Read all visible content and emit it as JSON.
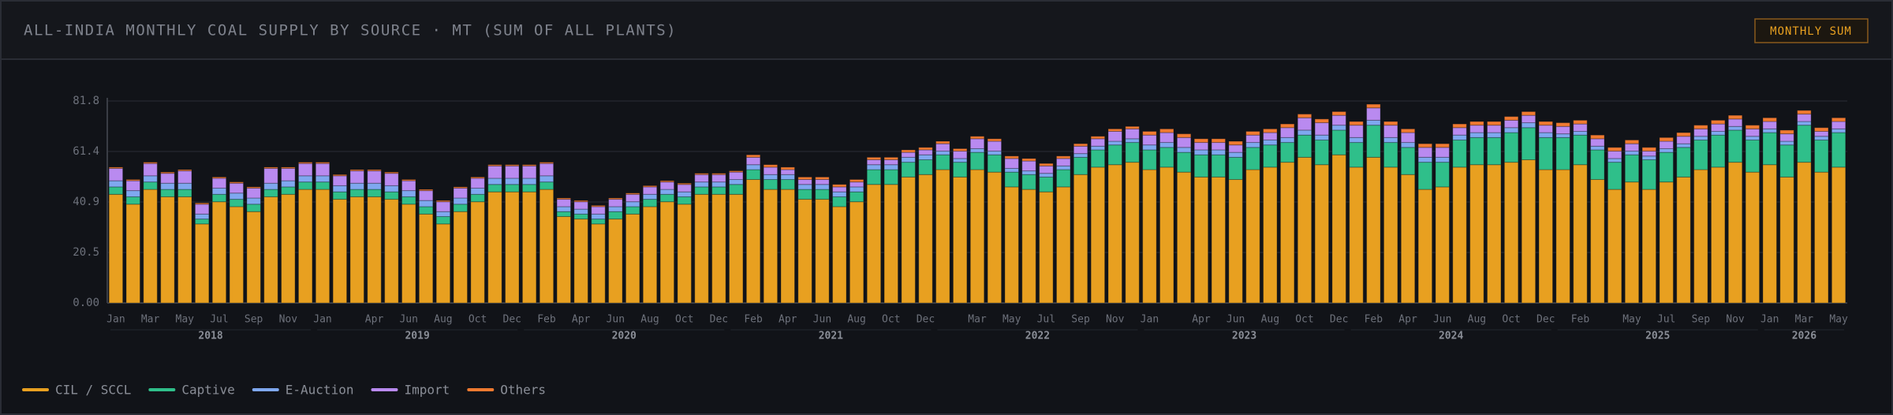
{
  "header": {
    "title": "ALL-INDIA MONTHLY COAL SUPPLY BY SOURCE · MT (SUM OF ALL PLANTS)",
    "button": "MONTHLY SUM"
  },
  "chart_data": {
    "type": "stacked_bar",
    "categories": [
      "Jan",
      null,
      "Mar",
      null,
      "May",
      null,
      "Jul",
      null,
      "Sep",
      null,
      "Nov",
      null,
      "Jan",
      null,
      null,
      "Apr",
      null,
      "Jun",
      null,
      "Aug",
      null,
      "Oct",
      null,
      "Dec",
      null,
      "Feb",
      null,
      "Apr",
      null,
      "Jun",
      null,
      "Aug",
      null,
      "Oct",
      null,
      "Dec",
      null,
      "Feb",
      null,
      "Apr",
      null,
      "Jun",
      null,
      "Aug",
      null,
      "Oct",
      null,
      "Dec",
      null,
      null,
      "Mar",
      null,
      "May",
      null,
      "Jul",
      null,
      "Sep",
      null,
      "Nov",
      null,
      "Jan",
      null,
      null,
      "Apr",
      null,
      "Jun",
      null,
      "Aug",
      null,
      "Oct",
      null,
      "Dec",
      null,
      "Feb",
      null,
      "Apr",
      null,
      "Jun",
      null,
      "Aug",
      null,
      "Oct",
      null,
      "Dec",
      null,
      "Feb",
      null,
      null,
      "May",
      null,
      "Jul",
      null,
      "Sep",
      null,
      "Nov",
      null,
      "Jan",
      null,
      "Mar",
      null,
      "May"
    ],
    "years": [
      "2018",
      "2019",
      "2020",
      "2021",
      "2022",
      "2023",
      "2024",
      "2025",
      "2026"
    ],
    "ylim": [
      0,
      81.8
    ],
    "yticks": [
      {
        "value": 0,
        "label": "0.00"
      },
      {
        "value": 20.45,
        "label": "20.5"
      },
      {
        "value": 40.9,
        "label": "40.9"
      },
      {
        "value": 61.35,
        "label": "61.4"
      },
      {
        "value": 81.8,
        "label": "81.8"
      }
    ],
    "grid": true,
    "series": [
      {
        "name": "CIL / SCCL",
        "color": "#e8a020",
        "values": [
          44,
          40,
          46,
          43,
          43,
          32,
          41,
          39,
          37,
          43,
          44,
          46,
          46,
          42,
          43,
          43,
          42,
          40,
          36,
          32,
          37,
          41,
          45,
          45,
          45,
          46,
          35,
          34,
          32,
          34,
          36,
          39,
          41,
          40,
          44,
          44,
          44,
          50,
          46,
          46,
          42,
          42,
          39,
          41,
          48,
          48,
          51,
          52,
          54,
          51,
          54,
          53,
          47,
          46,
          45,
          47,
          52,
          55,
          56,
          57,
          54,
          55,
          53,
          51,
          51,
          50,
          54,
          55,
          57,
          59,
          56,
          60,
          55,
          59,
          55,
          52,
          46,
          47,
          55,
          56,
          56,
          57,
          58,
          54,
          54,
          56,
          50,
          46,
          49,
          46,
          49,
          51,
          54,
          55,
          57,
          53,
          56,
          51,
          57,
          53,
          55
        ]
      },
      {
        "name": "Captive",
        "color": "#2fbf8a",
        "values": [
          3,
          3,
          3,
          3,
          3,
          2,
          3,
          3,
          3,
          3,
          3,
          3,
          3,
          3,
          3,
          3,
          3,
          3,
          3,
          3,
          3,
          3,
          3,
          3,
          3,
          3,
          2,
          2,
          2,
          3,
          3,
          3,
          3,
          3,
          3,
          3,
          4,
          4,
          4,
          4,
          4,
          4,
          4,
          4,
          6,
          6,
          6,
          6,
          6,
          6,
          7,
          7,
          6,
          6,
          6,
          7,
          7,
          7,
          8,
          8,
          8,
          8,
          8,
          9,
          9,
          9,
          9,
          9,
          8,
          9,
          10,
          10,
          10,
          13,
          10,
          11,
          11,
          10,
          11,
          11,
          11,
          12,
          13,
          13,
          13,
          12,
          12,
          11,
          11,
          12,
          12,
          12,
          12,
          13,
          13,
          13,
          13,
          13,
          15,
          13,
          14
        ]
      },
      {
        "name": "E-Auction",
        "color": "#7fa8f0",
        "values": [
          2.5,
          2.5,
          2.5,
          2.5,
          2.5,
          2,
          2.5,
          2.5,
          2.5,
          2.5,
          2.5,
          2.5,
          2.5,
          2.5,
          2.5,
          2.5,
          2.5,
          2.5,
          2.5,
          2,
          2.5,
          2.5,
          2.5,
          2.5,
          2.5,
          2.5,
          2,
          2,
          2,
          2,
          2,
          2,
          2,
          2,
          2,
          2,
          2,
          2,
          2,
          2,
          2,
          2,
          2,
          2,
          2,
          2,
          2,
          2,
          1.5,
          1.5,
          1.5,
          1.5,
          1.5,
          1.5,
          1.5,
          1.5,
          1.5,
          1.5,
          1.5,
          1.5,
          2,
          2,
          2,
          2,
          2,
          2,
          2,
          2,
          2,
          2,
          2,
          2,
          2,
          2,
          2,
          2,
          2,
          2,
          2,
          2,
          2,
          2,
          2,
          2,
          1.5,
          1.5,
          1.5,
          1.5,
          1.5,
          1.5,
          1.5,
          1.5,
          1.5,
          1.5,
          1.5,
          1.5,
          1.5,
          1.5,
          1.5,
          1.5,
          1.5
        ]
      },
      {
        "name": "Import",
        "color": "#b98af0",
        "values": [
          5,
          4,
          5,
          4,
          5,
          4,
          4,
          4,
          4,
          6,
          5,
          5,
          5,
          4,
          5,
          5,
          5,
          4,
          4,
          4,
          4,
          4,
          5,
          5,
          5,
          5,
          3,
          3,
          3,
          3,
          3,
          3,
          3,
          3,
          3,
          3,
          3,
          3,
          3,
          2,
          2,
          2,
          2,
          2,
          2,
          2,
          2,
          2,
          3,
          3,
          4,
          4,
          4,
          4,
          3,
          3,
          3,
          3,
          4,
          4,
          4,
          4,
          4,
          3,
          3,
          3,
          3,
          3,
          4,
          5,
          5,
          4,
          5,
          5,
          5,
          4,
          4,
          4,
          3,
          3,
          3,
          3,
          3,
          3,
          3,
          3,
          3,
          3,
          3,
          2,
          3,
          3,
          3,
          3,
          3,
          3,
          3,
          3,
          3,
          2,
          3
        ]
      },
      {
        "name": "Others",
        "color": "#f07a30",
        "values": [
          0.5,
          0.5,
          0.5,
          0.5,
          0.5,
          0.5,
          0.5,
          0.5,
          0.5,
          0.5,
          0.5,
          0.5,
          0.5,
          0.5,
          0.5,
          0.5,
          0.5,
          0.5,
          0.5,
          0.5,
          0.5,
          0.5,
          0.5,
          0.5,
          0.5,
          0.5,
          0.5,
          0.5,
          0.5,
          0.5,
          0.5,
          0.5,
          0.5,
          0.5,
          0.5,
          0.5,
          0.5,
          1,
          1,
          1,
          1,
          1,
          1,
          1,
          1,
          1,
          1,
          1,
          1,
          1,
          1,
          1,
          1,
          1,
          1,
          1,
          1,
          1,
          1,
          1,
          1.5,
          1.5,
          1.5,
          1.5,
          1.5,
          1.5,
          1.5,
          1.5,
          1.5,
          1.5,
          1.5,
          1.5,
          1.5,
          1.5,
          1.5,
          1.5,
          1.5,
          1.5,
          1.5,
          1.5,
          1.5,
          1.5,
          1.5,
          1.5,
          1.5,
          1.5,
          1.5,
          1.5,
          1.5,
          1.5,
          1.5,
          1.5,
          1.5,
          1.5,
          1.5,
          1.5,
          1.5,
          1.5,
          1.5,
          1.5,
          1.5
        ]
      }
    ]
  }
}
